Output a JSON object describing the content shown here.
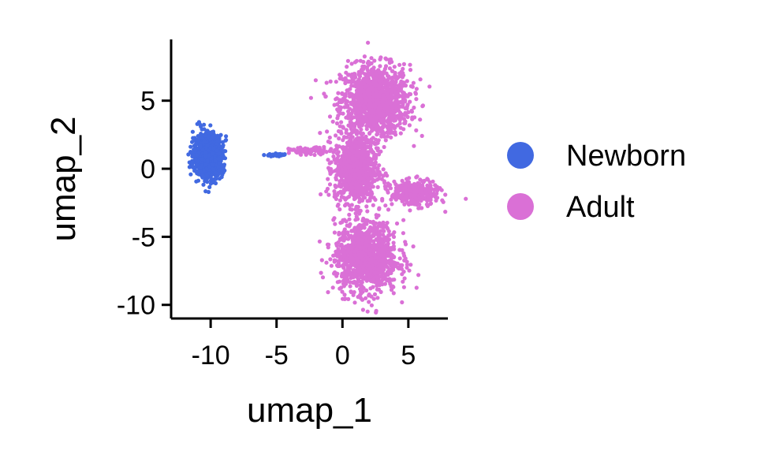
{
  "chart_data": {
    "type": "scatter",
    "xlabel": "umap_1",
    "ylabel": "umap_2",
    "xlim": [
      -13,
      8
    ],
    "ylim": [
      -11,
      9.5
    ],
    "x_ticks": [
      -10,
      -5,
      0,
      5
    ],
    "y_ticks": [
      -10,
      -5,
      0,
      5
    ],
    "x_tick_labels": [
      "-10",
      "-5",
      "0",
      "5"
    ],
    "y_tick_labels": [
      "-10",
      "-5",
      "0",
      "5"
    ],
    "legend": {
      "position": "right",
      "entries": [
        "Newborn",
        "Adult"
      ]
    },
    "series": [
      {
        "name": "Newborn",
        "color": "#4169E1",
        "clusters": [
          {
            "label_hint": "main blob",
            "center": [
              -10.2,
              1.0
            ],
            "spread": [
              1.1,
              1.6
            ],
            "count": 900
          },
          {
            "label_hint": "bridge strand",
            "center": [
              -5.0,
              1.0
            ],
            "spread": [
              0.8,
              0.12
            ],
            "count": 40
          }
        ]
      },
      {
        "name": "Adult",
        "color": "#DA70D6",
        "clusters": [
          {
            "label_hint": "upper lobe",
            "center": [
              2.5,
              5.0
            ],
            "spread": [
              2.6,
              2.6
            ],
            "count": 1200
          },
          {
            "label_hint": "central stem",
            "center": [
              1.0,
              0.0
            ],
            "spread": [
              1.6,
              2.5
            ],
            "count": 900
          },
          {
            "label_hint": "lower lobe",
            "center": [
              1.8,
              -6.5
            ],
            "spread": [
              2.4,
              2.6
            ],
            "count": 1100
          },
          {
            "label_hint": "right arm",
            "center": [
              5.5,
              -1.8
            ],
            "spread": [
              1.8,
              0.9
            ],
            "count": 350
          },
          {
            "label_hint": "left strand",
            "center": [
              -2.5,
              1.3
            ],
            "spread": [
              1.5,
              0.25
            ],
            "count": 80
          }
        ]
      }
    ]
  }
}
